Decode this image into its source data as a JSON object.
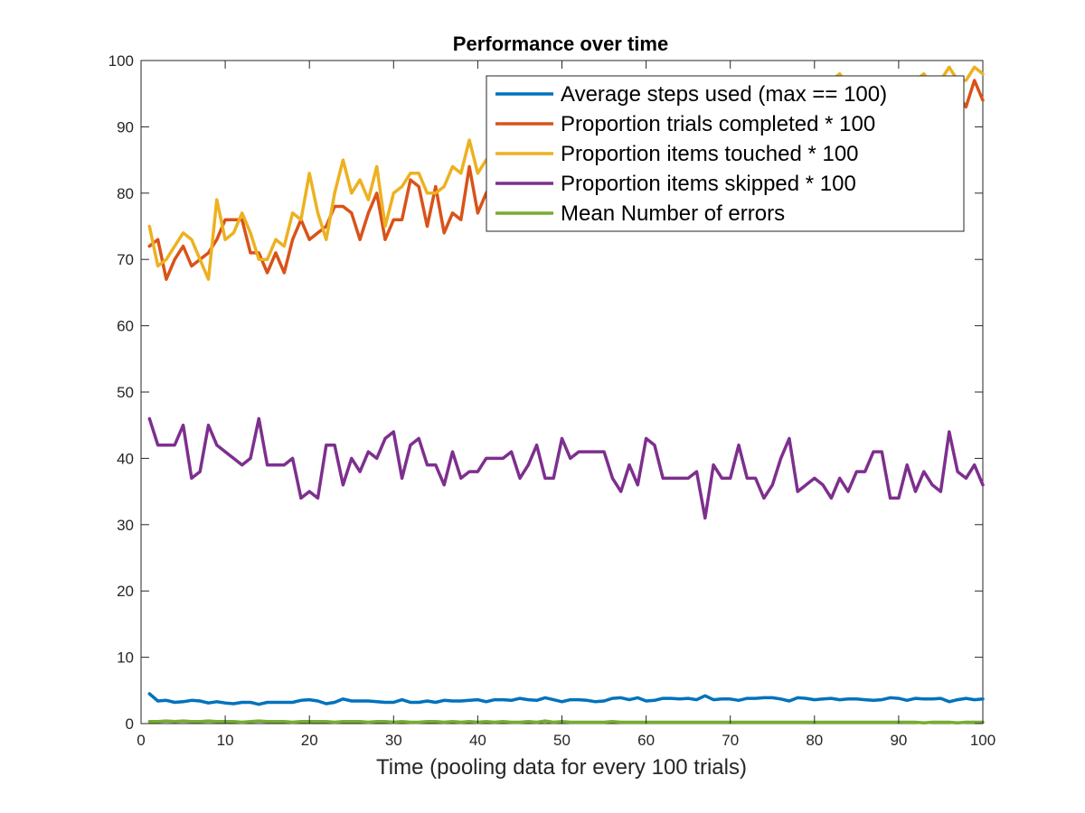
{
  "chart_data": {
    "type": "line",
    "title": "Performance over time",
    "xlabel": "Time (pooling data for every 100 trials)",
    "ylabel": "",
    "xlim": [
      0,
      100
    ],
    "ylim": [
      0,
      100
    ],
    "xticks": [
      0,
      10,
      20,
      30,
      40,
      50,
      60,
      70,
      80,
      90,
      100
    ],
    "yticks": [
      0,
      10,
      20,
      30,
      40,
      50,
      60,
      70,
      80,
      90,
      100
    ],
    "grid": false,
    "legend_position": "top-right",
    "x": [
      1,
      2,
      3,
      4,
      5,
      6,
      7,
      8,
      9,
      10,
      11,
      12,
      13,
      14,
      15,
      16,
      17,
      18,
      19,
      20,
      21,
      22,
      23,
      24,
      25,
      26,
      27,
      28,
      29,
      30,
      31,
      32,
      33,
      34,
      35,
      36,
      37,
      38,
      39,
      40,
      41,
      42,
      43,
      44,
      45,
      46,
      47,
      48,
      49,
      50,
      51,
      52,
      53,
      54,
      55,
      56,
      57,
      58,
      59,
      60,
      61,
      62,
      63,
      64,
      65,
      66,
      67,
      68,
      69,
      70,
      71,
      72,
      73,
      74,
      75,
      76,
      77,
      78,
      79,
      80,
      81,
      82,
      83,
      84,
      85,
      86,
      87,
      88,
      89,
      90,
      91,
      92,
      93,
      94,
      95,
      96,
      97,
      98,
      99,
      100
    ],
    "series": [
      {
        "name": "Average steps used (max == 100)",
        "color": "#0072bd",
        "values": [
          4.5,
          3.4,
          3.5,
          3.2,
          3.3,
          3.5,
          3.4,
          3.1,
          3.3,
          3.1,
          3.0,
          3.2,
          3.2,
          2.9,
          3.2,
          3.2,
          3.2,
          3.2,
          3.5,
          3.6,
          3.4,
          3.0,
          3.2,
          3.7,
          3.4,
          3.4,
          3.4,
          3.3,
          3.2,
          3.2,
          3.6,
          3.2,
          3.2,
          3.4,
          3.2,
          3.5,
          3.4,
          3.4,
          3.5,
          3.6,
          3.3,
          3.6,
          3.6,
          3.5,
          3.8,
          3.6,
          3.5,
          3.9,
          3.6,
          3.3,
          3.6,
          3.6,
          3.5,
          3.3,
          3.4,
          3.8,
          3.9,
          3.6,
          3.9,
          3.4,
          3.5,
          3.8,
          3.8,
          3.7,
          3.8,
          3.6,
          4.2,
          3.6,
          3.7,
          3.7,
          3.5,
          3.8,
          3.8,
          3.9,
          3.9,
          3.7,
          3.4,
          3.9,
          3.8,
          3.6,
          3.7,
          3.8,
          3.6,
          3.7,
          3.7,
          3.6,
          3.5,
          3.6,
          3.9,
          3.8,
          3.5,
          3.8,
          3.7,
          3.7,
          3.8,
          3.3,
          3.6,
          3.8,
          3.6,
          3.7
        ]
      },
      {
        "name": "Proportion trials completed * 100",
        "color": "#d95319",
        "values": [
          72,
          73,
          67,
          70,
          72,
          69,
          70,
          71,
          73,
          76,
          76,
          76,
          71,
          71,
          68,
          71,
          68,
          73,
          76,
          73,
          74,
          75,
          78,
          78,
          77,
          73,
          77,
          80,
          73,
          76,
          76,
          82,
          81,
          75,
          81,
          74,
          77,
          76,
          84,
          77,
          80,
          82,
          82,
          82,
          82,
          81,
          82,
          75,
          84,
          86,
          83,
          85,
          86,
          84,
          85,
          87,
          86,
          88,
          87,
          89,
          88,
          90,
          88,
          90,
          89,
          91,
          90,
          92,
          91,
          92,
          91,
          93,
          92,
          93,
          92,
          94,
          93,
          94,
          92,
          95,
          94,
          94,
          95,
          93,
          94,
          95,
          94,
          96,
          95,
          95,
          96,
          94,
          96,
          95,
          96,
          97,
          95,
          93,
          97,
          94
        ]
      },
      {
        "name": "Proportion items touched * 100",
        "color": "#edb120",
        "values": [
          75,
          69,
          70,
          72,
          74,
          73,
          70,
          67,
          79,
          73,
          74,
          77,
          74,
          70,
          70,
          73,
          72,
          77,
          76,
          83,
          77,
          73,
          80,
          85,
          80,
          82,
          79,
          84,
          75,
          80,
          81,
          83,
          83,
          80,
          80,
          81,
          84,
          83,
          88,
          83,
          85,
          84,
          85,
          85,
          86,
          87,
          86,
          87,
          88,
          88,
          89,
          88,
          89,
          88,
          89,
          90,
          89,
          90,
          91,
          91,
          90,
          92,
          91,
          92,
          91,
          93,
          92,
          94,
          93,
          94,
          93,
          95,
          94,
          95,
          94,
          96,
          95,
          96,
          96,
          97,
          97,
          97,
          98,
          96,
          97,
          97,
          96,
          97,
          97,
          97,
          96,
          97,
          98,
          96,
          97,
          99,
          97,
          97,
          99,
          98
        ]
      },
      {
        "name": "Proportion items skipped * 100",
        "color": "#7e2f8e",
        "values": [
          46,
          42,
          42,
          42,
          45,
          37,
          38,
          45,
          42,
          41,
          40,
          39,
          40,
          46,
          39,
          39,
          39,
          40,
          34,
          35,
          34,
          42,
          42,
          36,
          40,
          38,
          41,
          40,
          43,
          44,
          37,
          42,
          43,
          39,
          39,
          36,
          41,
          37,
          38,
          38,
          40,
          40,
          40,
          41,
          37,
          39,
          42,
          37,
          37,
          43,
          40,
          41,
          41,
          41,
          41,
          37,
          35,
          39,
          36,
          43,
          42,
          37,
          37,
          37,
          37,
          38,
          31,
          39,
          37,
          37,
          42,
          37,
          37,
          34,
          36,
          40,
          43,
          35,
          36,
          37,
          36,
          34,
          37,
          35,
          38,
          38,
          41,
          41,
          34,
          34,
          39,
          35,
          38,
          36,
          35,
          44,
          38,
          37,
          39,
          36
        ]
      },
      {
        "name": "Mean Number of errors",
        "color": "#77ac30",
        "values": [
          0.3,
          0.3,
          0.4,
          0.3,
          0.4,
          0.3,
          0.3,
          0.4,
          0.3,
          0.3,
          0.3,
          0.2,
          0.3,
          0.4,
          0.3,
          0.3,
          0.3,
          0.2,
          0.3,
          0.3,
          0.3,
          0.3,
          0.2,
          0.3,
          0.3,
          0.3,
          0.2,
          0.3,
          0.3,
          0.2,
          0.3,
          0.2,
          0.2,
          0.3,
          0.3,
          0.2,
          0.3,
          0.2,
          0.3,
          0.2,
          0.3,
          0.2,
          0.3,
          0.2,
          0.2,
          0.3,
          0.2,
          0.4,
          0.2,
          0.3,
          0.2,
          0.2,
          0.2,
          0.2,
          0.2,
          0.3,
          0.2,
          0.2,
          0.2,
          0.2,
          0.2,
          0.2,
          0.2,
          0.2,
          0.2,
          0.2,
          0.2,
          0.2,
          0.2,
          0.2,
          0.2,
          0.2,
          0.2,
          0.2,
          0.2,
          0.2,
          0.2,
          0.2,
          0.2,
          0.2,
          0.2,
          0.2,
          0.2,
          0.2,
          0.2,
          0.2,
          0.2,
          0.2,
          0.2,
          0.2,
          0.2,
          0.2,
          0.1,
          0.2,
          0.2,
          0.2,
          0.1,
          0.2,
          0.2,
          0.2
        ]
      }
    ]
  }
}
